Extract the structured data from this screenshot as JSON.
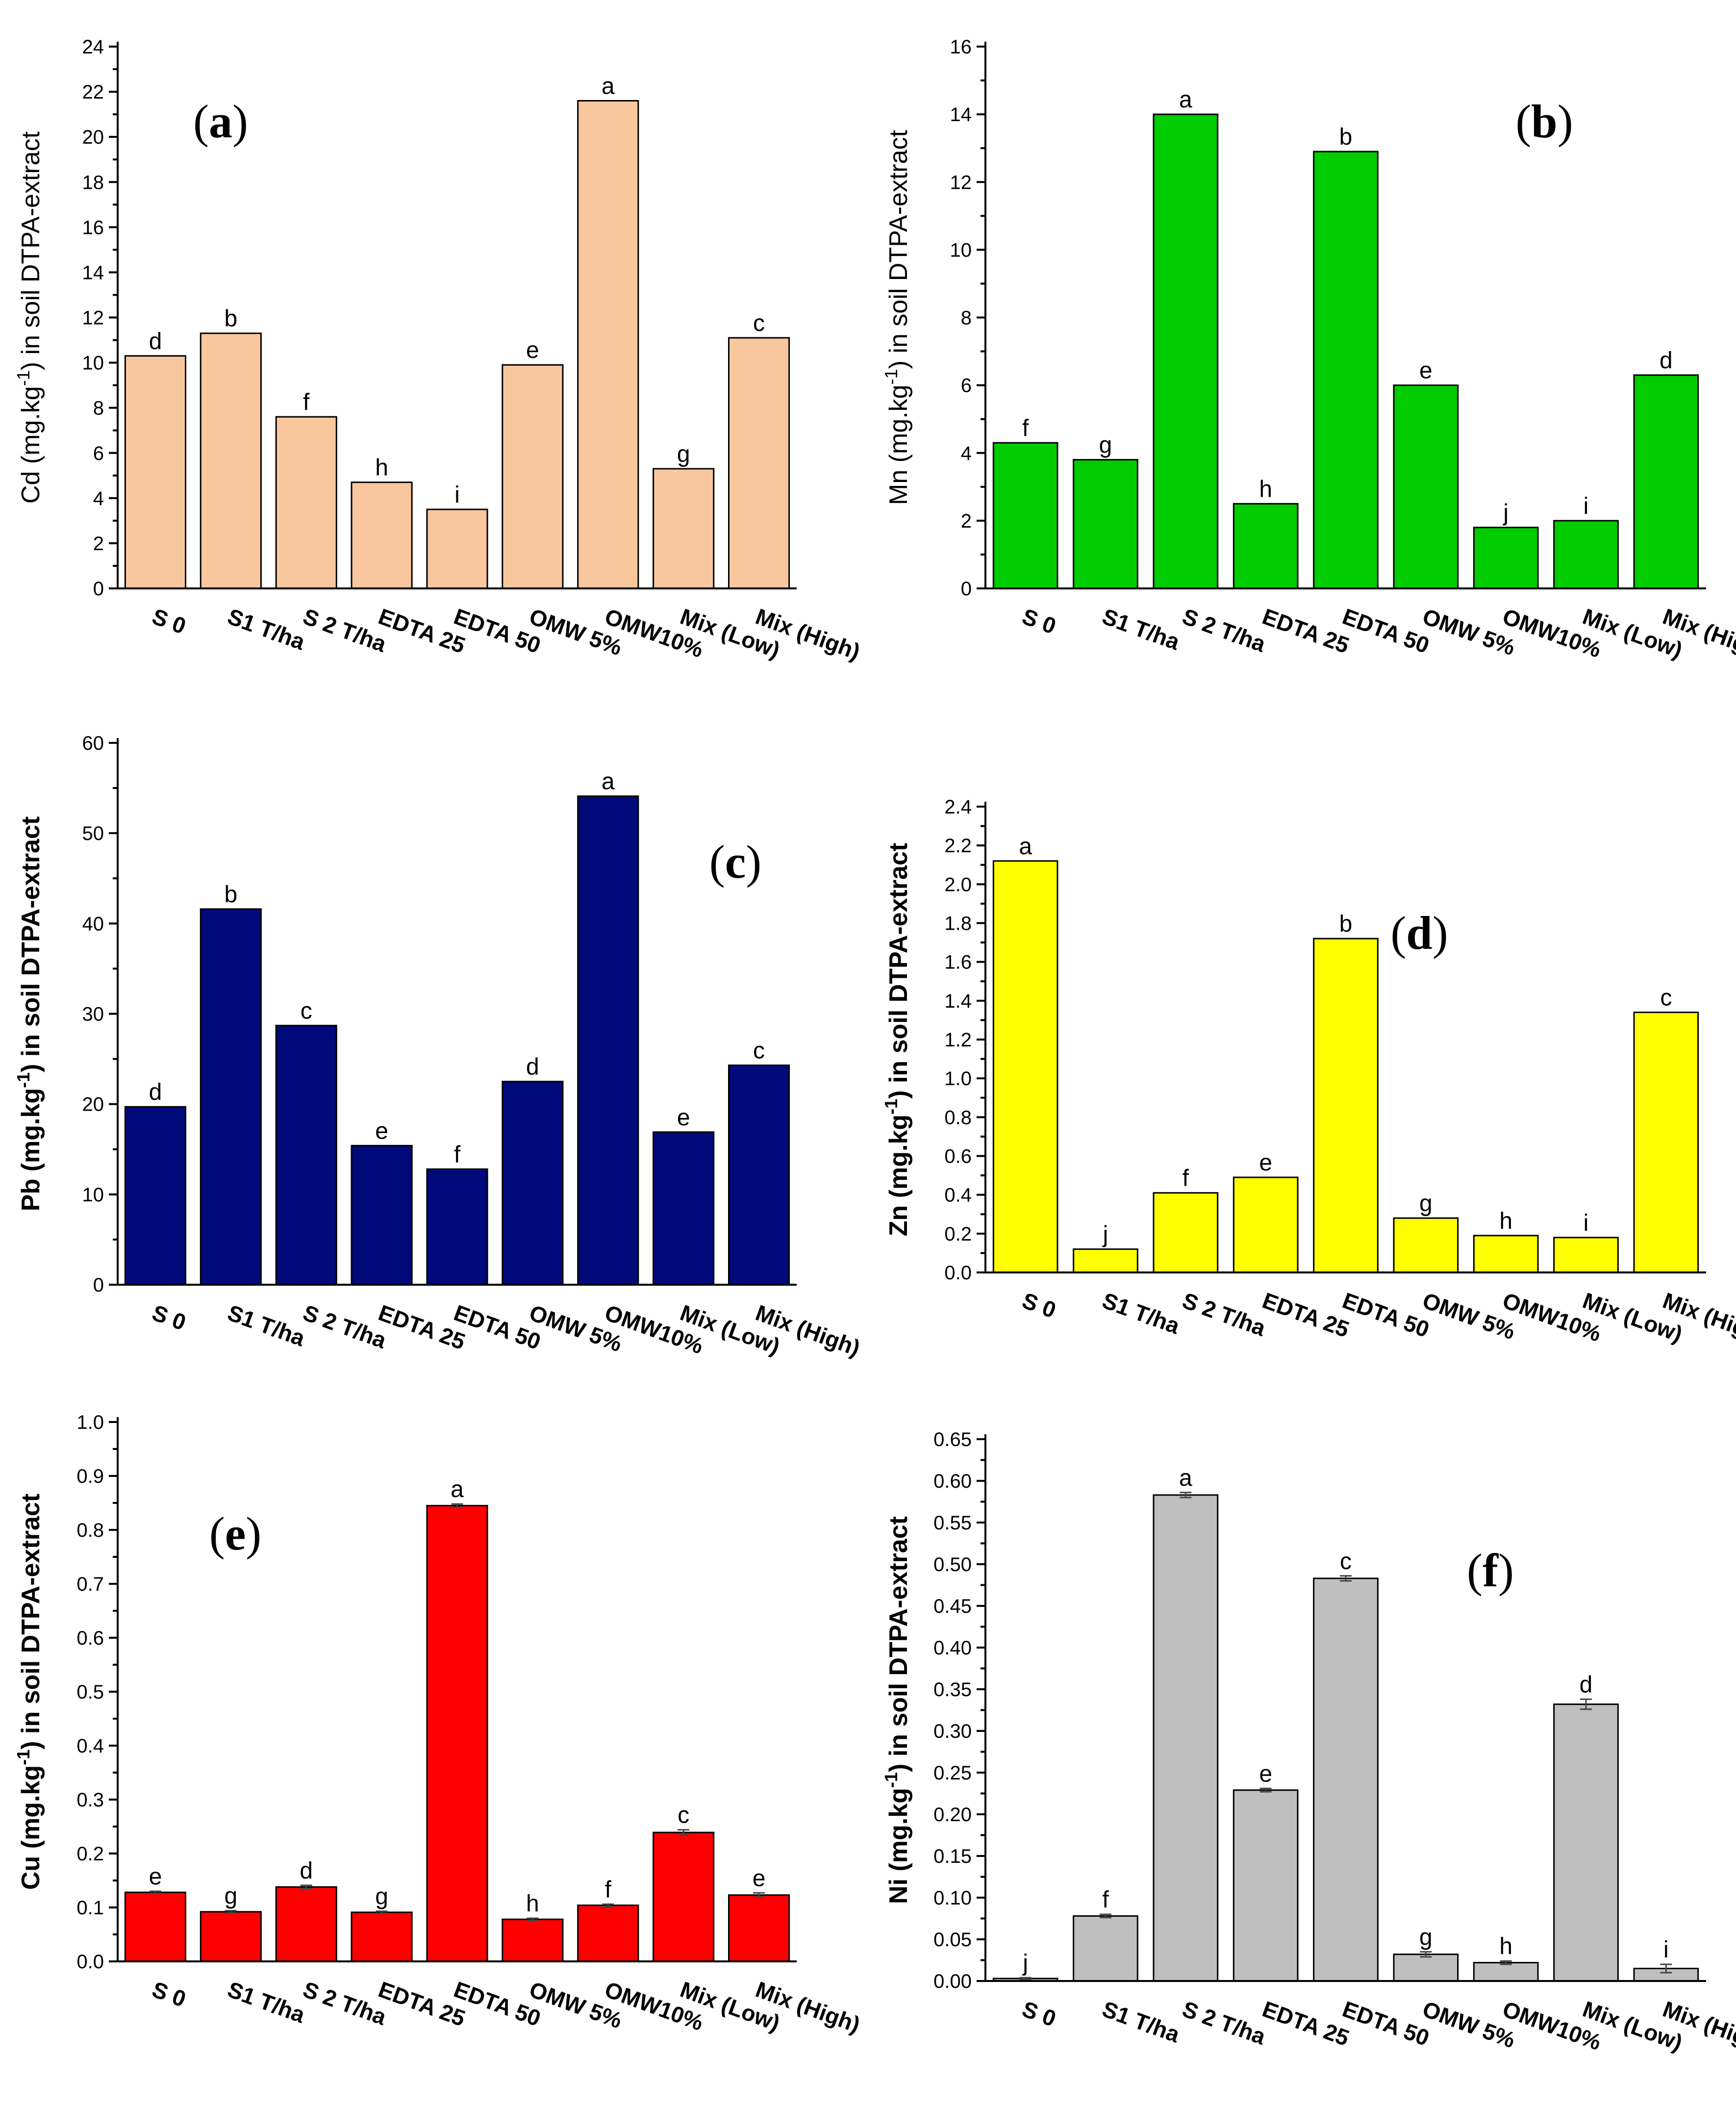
{
  "chart_data": [
    {
      "id": "a",
      "type": "bar",
      "panel_label": "a",
      "ylabel_html": "Cd (mg.kg<tspan baseline-shift='super' font-size='34'>-1</tspan>) in soil DTPA-extract",
      "ylabel": "Cd (mg.kg-1) in soil DTPA-extract",
      "ylabel_bold": false,
      "categories": [
        "S 0",
        "S1 T/ha",
        "S 2 T/ha",
        "EDTA 25",
        "EDTA 50",
        "OMW 5%",
        "OMW10%",
        "Mix (Low)",
        "Mix (High)"
      ],
      "values": [
        10.3,
        11.3,
        7.6,
        4.7,
        3.5,
        9.9,
        21.6,
        5.3,
        11.1
      ],
      "letters": [
        "d",
        "b",
        "f",
        "h",
        "i",
        "e",
        "a",
        "g",
        "c"
      ],
      "ylim": [
        0,
        24
      ],
      "yticks": [
        0,
        2,
        4,
        6,
        8,
        10,
        12,
        14,
        16,
        18,
        20,
        22,
        24
      ],
      "ytick_decimals": 0,
      "color": "#f9c79e",
      "error_bars": false
    },
    {
      "id": "b",
      "type": "bar",
      "panel_label": "b",
      "ylabel": "Mn (mg.kg-1) in soil DTPA-extract",
      "ylabel_bold": false,
      "categories": [
        "S 0",
        "S1 T/ha",
        "S 2 T/ha",
        "EDTA 25",
        "EDTA 50",
        "OMW 5%",
        "OMW10%",
        "Mix (Low)",
        "Mix (High)"
      ],
      "values": [
        4.3,
        3.8,
        14.0,
        2.5,
        12.9,
        6.0,
        1.8,
        2.0,
        6.3
      ],
      "letters": [
        "f",
        "g",
        "a",
        "h",
        "b",
        "e",
        "j",
        "i",
        "d"
      ],
      "ylim": [
        0,
        16
      ],
      "yticks": [
        0,
        2,
        4,
        6,
        8,
        10,
        12,
        14,
        16
      ],
      "ytick_decimals": 0,
      "color": "#00cc00",
      "error_bars": false
    },
    {
      "id": "c",
      "type": "bar",
      "panel_label": "c",
      "ylabel": "Pb (mg.kg-1) in soil DTPA-extract",
      "ylabel_bold": true,
      "categories": [
        "S 0",
        "S1 T/ha",
        "S 2 T/ha",
        "EDTA 25",
        "EDTA 50",
        "OMW 5%",
        "OMW10%",
        "Mix (Low)",
        "Mix (High)"
      ],
      "values": [
        19.7,
        41.6,
        28.7,
        15.4,
        12.8,
        22.5,
        54.1,
        16.9,
        24.3
      ],
      "letters": [
        "d",
        "b",
        "c",
        "e",
        "f",
        "d",
        "a",
        "e",
        "c"
      ],
      "ylim": [
        0,
        60
      ],
      "yticks": [
        0,
        10,
        20,
        30,
        40,
        50,
        60
      ],
      "ytick_decimals": 0,
      "color": "#000a7a",
      "error_bars": false
    },
    {
      "id": "d",
      "type": "bar",
      "panel_label": "d",
      "ylabel": "Zn (mg.kg-1) in soil DTPA-extract",
      "ylabel_bold": true,
      "categories": [
        "S 0",
        "S1 T/ha",
        "S 2 T/ha",
        "EDTA 25",
        "EDTA 50",
        "OMW 5%",
        "OMW10%",
        "Mix (Low)",
        "Mix (High)"
      ],
      "values": [
        2.12,
        0.12,
        0.41,
        0.49,
        1.72,
        0.28,
        0.19,
        0.18,
        1.34
      ],
      "letters": [
        "a",
        "j",
        "f",
        "e",
        "b",
        "g",
        "h",
        "i",
        "c"
      ],
      "ylim": [
        0,
        2.4
      ],
      "yticks": [
        0,
        0.2,
        0.4,
        0.6,
        0.8,
        1.0,
        1.2,
        1.4,
        1.6,
        1.8,
        2.0,
        2.2,
        2.4
      ],
      "ytick_decimals": 1,
      "color": "#ffff00",
      "error_bars": false
    },
    {
      "id": "e",
      "type": "bar",
      "panel_label": "e",
      "ylabel": "Cu (mg.kg-1) in soil DTPA-extract",
      "ylabel_bold": true,
      "categories": [
        "S 0",
        "S1 T/ha",
        "S 2 T/ha",
        "EDTA 25",
        "EDTA 50",
        "OMW 5%",
        "OMW10%",
        "Mix (Low)",
        "Mix (High)"
      ],
      "values": [
        0.128,
        0.092,
        0.138,
        0.091,
        0.845,
        0.078,
        0.104,
        0.239,
        0.123
      ],
      "errors": [
        0.002,
        0.002,
        0.003,
        0.002,
        0.003,
        0.002,
        0.002,
        0.005,
        0.004
      ],
      "letters": [
        "e",
        "g",
        "d",
        "g",
        "a",
        "h",
        "f",
        "c",
        "e"
      ],
      "ylim": [
        0,
        1.0
      ],
      "yticks": [
        0,
        0.1,
        0.2,
        0.3,
        0.4,
        0.5,
        0.6,
        0.7,
        0.8,
        0.9,
        1.0
      ],
      "ytick_decimals": 1,
      "color": "#ff0000",
      "error_bars": true
    },
    {
      "id": "f",
      "type": "bar",
      "panel_label": "f",
      "ylabel": "Ni (mg.kg-1) in soil DTPA-extract",
      "ylabel_bold": true,
      "categories": [
        "S 0",
        "S1 T/ha",
        "S 2 T/ha",
        "EDTA 25",
        "EDTA 50",
        "OMW 5%",
        "OMW10%",
        "Mix (Low)",
        "Mix (High)"
      ],
      "values": [
        0.003,
        0.078,
        0.583,
        0.229,
        0.483,
        0.032,
        0.022,
        0.332,
        0.015
      ],
      "errors": [
        0.001,
        0.002,
        0.003,
        0.002,
        0.003,
        0.003,
        0.002,
        0.006,
        0.005
      ],
      "letters": [
        "j",
        "f",
        "a",
        "e",
        "c",
        "g",
        "h",
        "d",
        "i"
      ],
      "ylim": [
        0,
        0.65
      ],
      "yticks": [
        0,
        0.05,
        0.1,
        0.15,
        0.2,
        0.25,
        0.3,
        0.35,
        0.4,
        0.45,
        0.5,
        0.55,
        0.6,
        0.65
      ],
      "ytick_decimals": 2,
      "color": "#bfbfbf",
      "error_bars": true
    }
  ]
}
